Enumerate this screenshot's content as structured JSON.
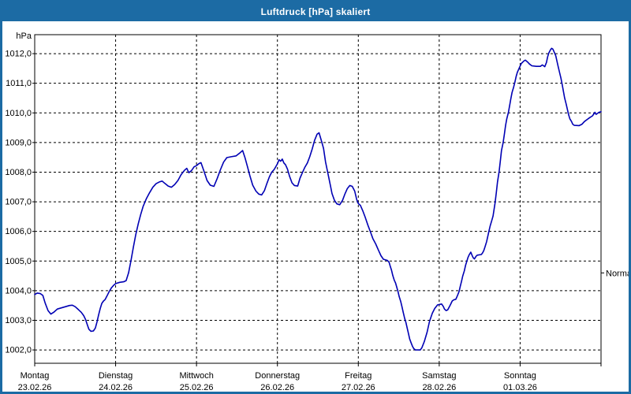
{
  "window": {
    "title": "Luftdruck [hPa] skaliert",
    "colors": {
      "title_bar": "#1c6ba4",
      "border": "#1c6ba4",
      "background": "#ffffff"
    }
  },
  "chart_data": {
    "type": "line",
    "title": "Luftdruck [hPa] skaliert",
    "y_axis": {
      "unit_label": "hPa",
      "tick_values": [
        1002,
        1003,
        1004,
        1005,
        1006,
        1007,
        1008,
        1009,
        1010,
        1011,
        1012
      ],
      "tick_labels": [
        "1002,0",
        "1003,0",
        "1004,0",
        "1005,0",
        "1006,0",
        "1007,0",
        "1008,0",
        "1009,0",
        "1010,0",
        "1011,0",
        "1012,0"
      ],
      "ylim": [
        1001.55,
        1012.64
      ]
    },
    "x_axis": {
      "xlim_days": [
        0,
        7
      ],
      "days": [
        {
          "name": "Montag",
          "date": "23.02.26"
        },
        {
          "name": "Dienstag",
          "date": "24.02.26"
        },
        {
          "name": "Mittwoch",
          "date": "25.02.26"
        },
        {
          "name": "Donnerstag",
          "date": "26.02.26"
        },
        {
          "name": "Freitag",
          "date": "27.02.26"
        },
        {
          "name": "Samstag",
          "date": "28.02.26"
        },
        {
          "name": "Sonntag",
          "date": "01.03.26"
        }
      ]
    },
    "right_axis_marker": {
      "label": "Normal",
      "value": 1004.6
    },
    "grid": {
      "style": "dashed",
      "color": "#000000",
      "legend_position": "right"
    },
    "line_color": "#0000b4",
    "series": [
      {
        "name": "Luftdruck [hPa]",
        "points": [
          [
            0.0,
            1003.87
          ],
          [
            0.03,
            1003.92
          ],
          [
            0.07,
            1003.9
          ],
          [
            0.1,
            1003.84
          ],
          [
            0.13,
            1003.58
          ],
          [
            0.165,
            1003.33
          ],
          [
            0.2,
            1003.21
          ],
          [
            0.24,
            1003.28
          ],
          [
            0.28,
            1003.38
          ],
          [
            0.33,
            1003.42
          ],
          [
            0.38,
            1003.46
          ],
          [
            0.43,
            1003.5
          ],
          [
            0.465,
            1003.51
          ],
          [
            0.5,
            1003.46
          ],
          [
            0.54,
            1003.36
          ],
          [
            0.575,
            1003.27
          ],
          [
            0.605,
            1003.16
          ],
          [
            0.63,
            1003.02
          ],
          [
            0.65,
            1002.85
          ],
          [
            0.67,
            1002.7
          ],
          [
            0.695,
            1002.63
          ],
          [
            0.725,
            1002.64
          ],
          [
            0.75,
            1002.74
          ],
          [
            0.77,
            1002.95
          ],
          [
            0.79,
            1003.18
          ],
          [
            0.81,
            1003.4
          ],
          [
            0.83,
            1003.57
          ],
          [
            0.85,
            1003.65
          ],
          [
            0.87,
            1003.7
          ],
          [
            0.895,
            1003.83
          ],
          [
            0.92,
            1003.97
          ],
          [
            0.95,
            1004.1
          ],
          [
            0.975,
            1004.18
          ],
          [
            1.0,
            1004.24
          ],
          [
            1.05,
            1004.28
          ],
          [
            1.1,
            1004.3
          ],
          [
            1.13,
            1004.34
          ],
          [
            1.16,
            1004.6
          ],
          [
            1.19,
            1005.02
          ],
          [
            1.22,
            1005.47
          ],
          [
            1.25,
            1005.9
          ],
          [
            1.28,
            1006.26
          ],
          [
            1.31,
            1006.57
          ],
          [
            1.34,
            1006.84
          ],
          [
            1.38,
            1007.1
          ],
          [
            1.42,
            1007.31
          ],
          [
            1.46,
            1007.49
          ],
          [
            1.5,
            1007.61
          ],
          [
            1.54,
            1007.67
          ],
          [
            1.575,
            1007.7
          ],
          [
            1.61,
            1007.62
          ],
          [
            1.65,
            1007.53
          ],
          [
            1.69,
            1007.49
          ],
          [
            1.73,
            1007.58
          ],
          [
            1.77,
            1007.72
          ],
          [
            1.81,
            1007.92
          ],
          [
            1.85,
            1008.06
          ],
          [
            1.88,
            1008.13
          ],
          [
            1.905,
            1007.98
          ],
          [
            1.94,
            1008.06
          ],
          [
            1.97,
            1008.18
          ],
          [
            2.0,
            1008.22
          ],
          [
            2.03,
            1008.29
          ],
          [
            2.055,
            1008.32
          ],
          [
            2.09,
            1008.05
          ],
          [
            2.13,
            1007.72
          ],
          [
            2.17,
            1007.56
          ],
          [
            2.215,
            1007.52
          ],
          [
            2.255,
            1007.78
          ],
          [
            2.295,
            1008.08
          ],
          [
            2.335,
            1008.34
          ],
          [
            2.375,
            1008.49
          ],
          [
            2.43,
            1008.52
          ],
          [
            2.49,
            1008.55
          ],
          [
            2.54,
            1008.66
          ],
          [
            2.57,
            1008.73
          ],
          [
            2.6,
            1008.48
          ],
          [
            2.63,
            1008.18
          ],
          [
            2.66,
            1007.88
          ],
          [
            2.695,
            1007.56
          ],
          [
            2.735,
            1007.36
          ],
          [
            2.77,
            1007.26
          ],
          [
            2.805,
            1007.23
          ],
          [
            2.84,
            1007.38
          ],
          [
            2.87,
            1007.62
          ],
          [
            2.9,
            1007.84
          ],
          [
            2.93,
            1008.0
          ],
          [
            2.96,
            1008.09
          ],
          [
            3.0,
            1008.28
          ],
          [
            3.02,
            1008.42
          ],
          [
            3.04,
            1008.37
          ],
          [
            3.06,
            1008.44
          ],
          [
            3.08,
            1008.31
          ],
          [
            3.1,
            1008.25
          ],
          [
            3.125,
            1008.1
          ],
          [
            3.15,
            1007.86
          ],
          [
            3.18,
            1007.64
          ],
          [
            3.21,
            1007.55
          ],
          [
            3.25,
            1007.53
          ],
          [
            3.28,
            1007.8
          ],
          [
            3.31,
            1007.99
          ],
          [
            3.34,
            1008.17
          ],
          [
            3.37,
            1008.31
          ],
          [
            3.4,
            1008.52
          ],
          [
            3.43,
            1008.78
          ],
          [
            3.46,
            1009.08
          ],
          [
            3.49,
            1009.28
          ],
          [
            3.515,
            1009.33
          ],
          [
            3.545,
            1009.05
          ],
          [
            3.57,
            1008.8
          ],
          [
            3.595,
            1008.35
          ],
          [
            3.615,
            1008.08
          ],
          [
            3.635,
            1007.82
          ],
          [
            3.655,
            1007.55
          ],
          [
            3.675,
            1007.28
          ],
          [
            3.705,
            1007.05
          ],
          [
            3.735,
            1006.93
          ],
          [
            3.77,
            1006.9
          ],
          [
            3.805,
            1007.05
          ],
          [
            3.835,
            1007.27
          ],
          [
            3.865,
            1007.45
          ],
          [
            3.895,
            1007.55
          ],
          [
            3.925,
            1007.52
          ],
          [
            3.955,
            1007.36
          ],
          [
            3.98,
            1007.08
          ],
          [
            4.0,
            1006.94
          ],
          [
            4.025,
            1006.88
          ],
          [
            4.055,
            1006.7
          ],
          [
            4.085,
            1006.48
          ],
          [
            4.12,
            1006.2
          ],
          [
            4.15,
            1005.98
          ],
          [
            4.18,
            1005.76
          ],
          [
            4.215,
            1005.58
          ],
          [
            4.25,
            1005.36
          ],
          [
            4.28,
            1005.18
          ],
          [
            4.31,
            1005.06
          ],
          [
            4.36,
            1005.02
          ],
          [
            4.38,
            1004.96
          ],
          [
            4.395,
            1004.82
          ],
          [
            4.41,
            1004.7
          ],
          [
            4.425,
            1004.52
          ],
          [
            4.445,
            1004.35
          ],
          [
            4.46,
            1004.26
          ],
          [
            4.475,
            1004.12
          ],
          [
            4.49,
            1003.98
          ],
          [
            4.505,
            1003.8
          ],
          [
            4.525,
            1003.63
          ],
          [
            4.54,
            1003.45
          ],
          [
            4.555,
            1003.27
          ],
          [
            4.57,
            1003.09
          ],
          [
            4.59,
            1002.91
          ],
          [
            4.605,
            1002.73
          ],
          [
            4.62,
            1002.55
          ],
          [
            4.635,
            1002.37
          ],
          [
            4.655,
            1002.22
          ],
          [
            4.67,
            1002.12
          ],
          [
            4.685,
            1002.05
          ],
          [
            4.705,
            1002.0
          ],
          [
            4.765,
            1002.0
          ],
          [
            4.785,
            1002.07
          ],
          [
            4.815,
            1002.28
          ],
          [
            4.85,
            1002.6
          ],
          [
            4.88,
            1002.96
          ],
          [
            4.915,
            1003.24
          ],
          [
            4.945,
            1003.4
          ],
          [
            4.98,
            1003.52
          ],
          [
            5.03,
            1003.55
          ],
          [
            5.05,
            1003.47
          ],
          [
            5.065,
            1003.38
          ],
          [
            5.085,
            1003.33
          ],
          [
            5.105,
            1003.35
          ],
          [
            5.13,
            1003.48
          ],
          [
            5.145,
            1003.56
          ],
          [
            5.16,
            1003.65
          ],
          [
            5.18,
            1003.69
          ],
          [
            5.205,
            1003.71
          ],
          [
            5.225,
            1003.83
          ],
          [
            5.245,
            1003.97
          ],
          [
            5.26,
            1004.14
          ],
          [
            5.275,
            1004.31
          ],
          [
            5.29,
            1004.49
          ],
          [
            5.31,
            1004.67
          ],
          [
            5.325,
            1004.85
          ],
          [
            5.34,
            1004.98
          ],
          [
            5.355,
            1005.12
          ],
          [
            5.37,
            1005.21
          ],
          [
            5.39,
            1005.3
          ],
          [
            5.405,
            1005.2
          ],
          [
            5.42,
            1005.11
          ],
          [
            5.435,
            1005.07
          ],
          [
            5.455,
            1005.16
          ],
          [
            5.47,
            1005.2
          ],
          [
            5.52,
            1005.22
          ],
          [
            5.535,
            1005.27
          ],
          [
            5.55,
            1005.35
          ],
          [
            5.565,
            1005.47
          ],
          [
            5.585,
            1005.65
          ],
          [
            5.6,
            1005.83
          ],
          [
            5.615,
            1006.01
          ],
          [
            5.63,
            1006.19
          ],
          [
            5.65,
            1006.37
          ],
          [
            5.665,
            1006.52
          ],
          [
            5.69,
            1006.95
          ],
          [
            5.705,
            1007.3
          ],
          [
            5.72,
            1007.66
          ],
          [
            5.74,
            1008.02
          ],
          [
            5.755,
            1008.37
          ],
          [
            5.77,
            1008.73
          ],
          [
            5.79,
            1009.0
          ],
          [
            5.805,
            1009.27
          ],
          [
            5.82,
            1009.58
          ],
          [
            5.835,
            1009.8
          ],
          [
            5.855,
            1010.02
          ],
          [
            5.87,
            1010.24
          ],
          [
            5.885,
            1010.47
          ],
          [
            5.9,
            1010.69
          ],
          [
            5.92,
            1010.87
          ],
          [
            5.935,
            1011.04
          ],
          [
            5.95,
            1011.22
          ],
          [
            5.965,
            1011.36
          ],
          [
            5.985,
            1011.49
          ],
          [
            6.0,
            1011.58
          ],
          [
            6.015,
            1011.67
          ],
          [
            6.035,
            1011.72
          ],
          [
            6.05,
            1011.76
          ],
          [
            6.065,
            1011.78
          ],
          [
            6.095,
            1011.71
          ],
          [
            6.115,
            1011.65
          ],
          [
            6.145,
            1011.59
          ],
          [
            6.2,
            1011.57
          ],
          [
            6.25,
            1011.57
          ],
          [
            6.275,
            1011.62
          ],
          [
            6.305,
            1011.56
          ],
          [
            6.325,
            1011.7
          ],
          [
            6.34,
            1011.89
          ],
          [
            6.355,
            1012.02
          ],
          [
            6.375,
            1012.13
          ],
          [
            6.39,
            1012.18
          ],
          [
            6.405,
            1012.15
          ],
          [
            6.42,
            1012.06
          ],
          [
            6.44,
            1011.93
          ],
          [
            6.455,
            1011.75
          ],
          [
            6.47,
            1011.57
          ],
          [
            6.485,
            1011.39
          ],
          [
            6.505,
            1011.17
          ],
          [
            6.52,
            1010.95
          ],
          [
            6.535,
            1010.73
          ],
          [
            6.55,
            1010.51
          ],
          [
            6.57,
            1010.29
          ],
          [
            6.585,
            1010.11
          ],
          [
            6.6,
            1009.93
          ],
          [
            6.615,
            1009.8
          ],
          [
            6.635,
            1009.71
          ],
          [
            6.65,
            1009.62
          ],
          [
            6.67,
            1009.58
          ],
          [
            6.73,
            1009.57
          ],
          [
            6.765,
            1009.62
          ],
          [
            6.795,
            1009.71
          ],
          [
            6.83,
            1009.78
          ],
          [
            6.86,
            1009.84
          ],
          [
            6.895,
            1009.9
          ],
          [
            6.925,
            1010.02
          ],
          [
            6.94,
            1009.95
          ],
          [
            6.975,
            1010.02
          ],
          [
            7.0,
            1010.04
          ]
        ]
      }
    ]
  }
}
